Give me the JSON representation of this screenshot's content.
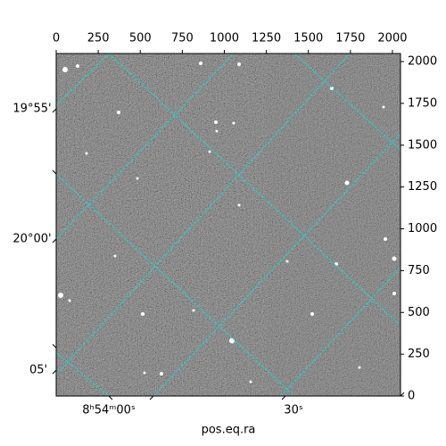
{
  "chart_data": {
    "type": "image",
    "xlabel": "pos.eq.ra",
    "xlim": [
      0,
      2048
    ],
    "xticks": [
      0,
      250,
      500,
      750,
      1000,
      1250,
      1500,
      1750,
      2000
    ],
    "ylim": [
      0,
      2048
    ],
    "yticks": [
      0,
      250,
      500,
      750,
      1000,
      1250,
      1500,
      1750,
      2000
    ],
    "dec_labels": [
      "19°55'",
      "20°00'",
      "05'"
    ],
    "ra_labels": [
      "8ʰ54ᵐ00ˢ",
      "30ˢ"
    ],
    "grid_color": "#00e5e5"
  }
}
